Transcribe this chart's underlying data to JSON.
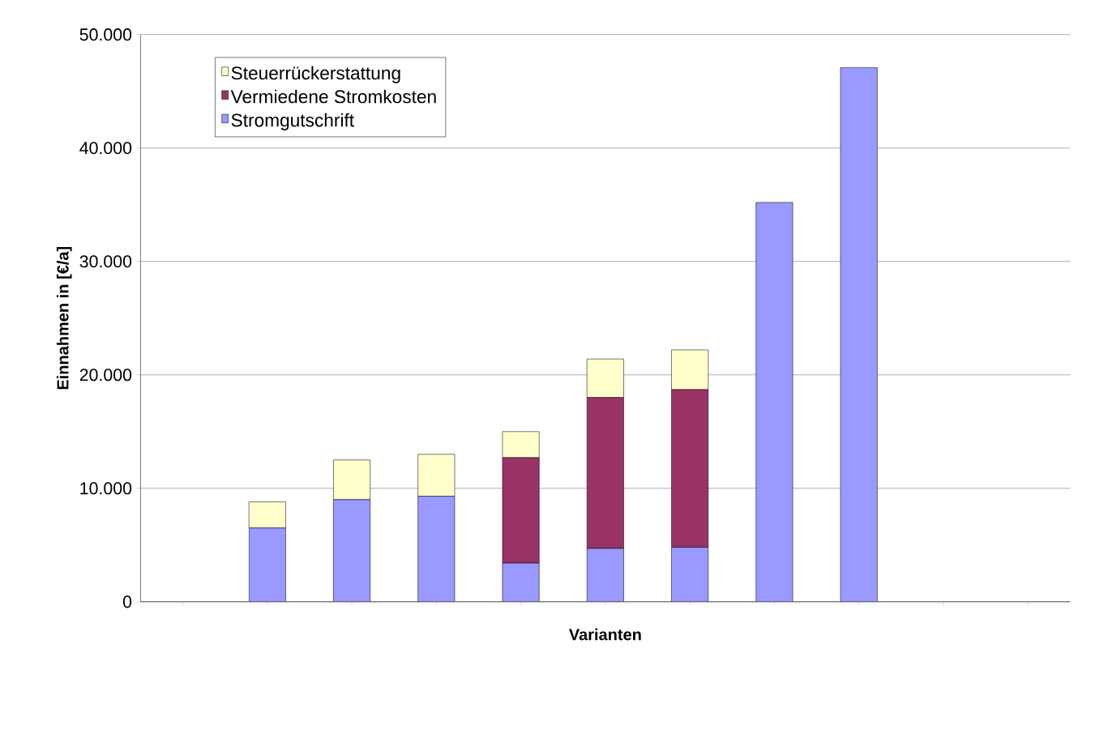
{
  "chart_data": {
    "type": "bar",
    "stacked": true,
    "xlabel": "Varianten",
    "ylabel": "Einnahmen in [€/a]",
    "categories": [
      null,
      null,
      null,
      null,
      null,
      null,
      null,
      null,
      null,
      null,
      null
    ],
    "series": [
      {
        "name": "Stromgutschrift",
        "color": "#9999ff",
        "values": [
          0,
          6500,
          9000,
          9300,
          3400,
          4700,
          4800,
          35200,
          47100,
          0,
          0
        ]
      },
      {
        "name": "Vermiedene Stromkosten",
        "color": "#993366",
        "values": [
          0,
          0,
          0,
          0,
          9300,
          13300,
          13900,
          0,
          0,
          0,
          0
        ]
      },
      {
        "name": "Steuerrückerstattung",
        "color": "#ffffcc",
        "values": [
          0,
          2300,
          3500,
          3700,
          2300,
          3400,
          3500,
          0,
          0,
          0,
          0
        ]
      }
    ],
    "ylim": [
      0,
      50000
    ],
    "yticks": [
      {
        "value": 0,
        "label": "0"
      },
      {
        "value": 10000,
        "label": "10.000"
      },
      {
        "value": 20000,
        "label": "20.000"
      },
      {
        "value": 30000,
        "label": "30.000"
      },
      {
        "value": 40000,
        "label": "40.000"
      },
      {
        "value": 50000,
        "label": "50.000"
      }
    ],
    "grid": "y",
    "legend": "top left"
  }
}
